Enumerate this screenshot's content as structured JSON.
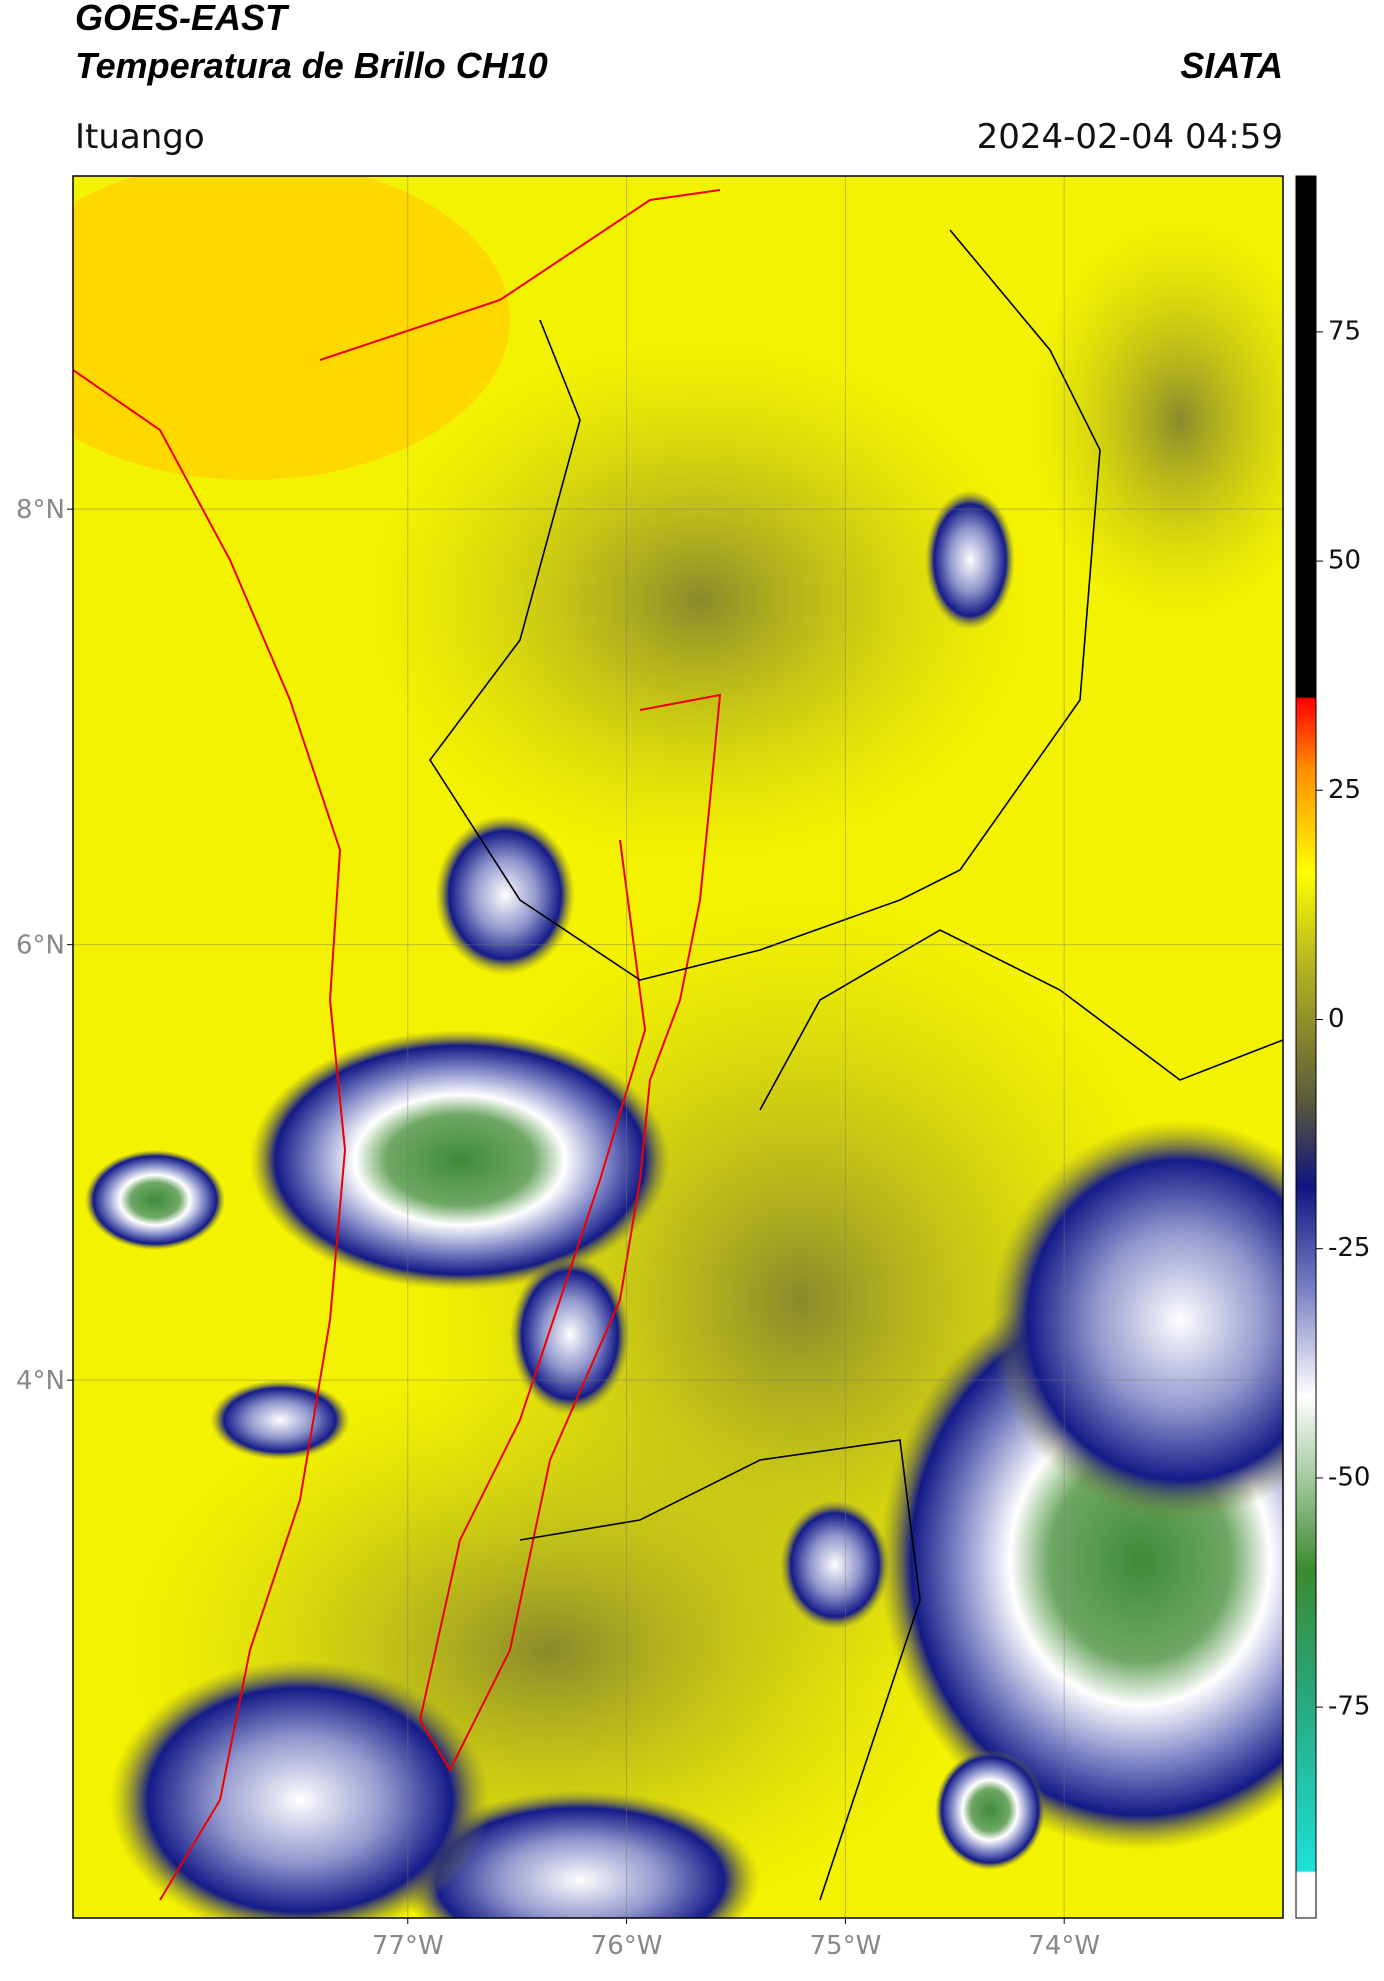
{
  "header": {
    "title": "GOES-EAST",
    "subtitle": "Temperatura de Brillo CH10",
    "agency": "SIATA",
    "location": "Ituango",
    "timestamp": "2024-02-04 04:59"
  },
  "map": {
    "latlim": [
      1.53,
      9.53
    ],
    "lonlim": [
      -78.53,
      -73.0
    ],
    "latticks": [
      {
        "value": 8,
        "label": "8°N"
      },
      {
        "value": 6,
        "label": "6°N"
      },
      {
        "value": 4,
        "label": "4°N"
      }
    ],
    "lonticks": [
      {
        "value": -77,
        "label": "77°W"
      },
      {
        "value": -76,
        "label": "76°W"
      },
      {
        "value": -75,
        "label": "75°W"
      },
      {
        "value": -74,
        "label": "74°W"
      }
    ],
    "grid": true
  },
  "colorbar": {
    "lim": [
      -98,
      92
    ],
    "ticks": [
      -75,
      -50,
      -25,
      0,
      25,
      50,
      75
    ]
  }
}
